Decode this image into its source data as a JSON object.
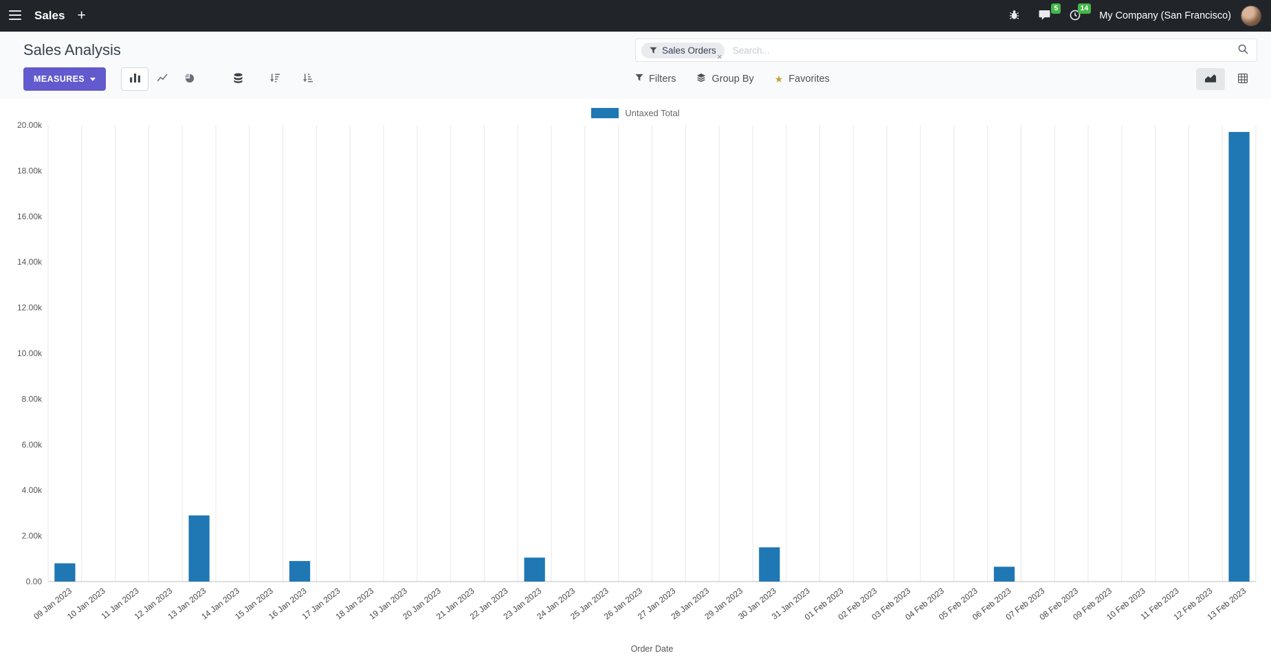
{
  "navbar": {
    "app_name": "Sales",
    "plus_label": "+",
    "company": "My Company (San Francisco)",
    "messages_badge": "5",
    "activities_badge": "14"
  },
  "control_panel": {
    "title": "Sales Analysis",
    "search": {
      "facet_label": "Sales Orders",
      "facet_remove": "×",
      "placeholder": "Search..."
    },
    "buttons": {
      "measures": "MEASURES",
      "filters": "Filters",
      "group_by": "Group By",
      "favorites": "Favorites"
    }
  },
  "icons": {
    "favorites_star": "★"
  },
  "colors": {
    "primary": "#625acd",
    "bar": "#1f77b4",
    "badge_green": "#44b749",
    "navbar_bg": "#212529"
  },
  "chart_data": {
    "type": "bar",
    "title": "",
    "xlabel": "Order Date",
    "ylabel": "",
    "ylim": [
      0,
      20000
    ],
    "ytick_step": 2000,
    "grid": "vertical",
    "legend_position": "top",
    "bar_color": "#1f77b4",
    "categories": [
      "09 Jan 2023",
      "10 Jan 2023",
      "11 Jan 2023",
      "12 Jan 2023",
      "13 Jan 2023",
      "14 Jan 2023",
      "15 Jan 2023",
      "16 Jan 2023",
      "17 Jan 2023",
      "18 Jan 2023",
      "19 Jan 2023",
      "20 Jan 2023",
      "21 Jan 2023",
      "22 Jan 2023",
      "23 Jan 2023",
      "24 Jan 2023",
      "25 Jan 2023",
      "26 Jan 2023",
      "27 Jan 2023",
      "28 Jan 2023",
      "29 Jan 2023",
      "30 Jan 2023",
      "31 Jan 2023",
      "01 Feb 2023",
      "02 Feb 2023",
      "03 Feb 2023",
      "04 Feb 2023",
      "05 Feb 2023",
      "06 Feb 2023",
      "07 Feb 2023",
      "08 Feb 2023",
      "09 Feb 2023",
      "10 Feb 2023",
      "11 Feb 2023",
      "12 Feb 2023",
      "13 Feb 2023"
    ],
    "series": [
      {
        "name": "Untaxed Total",
        "values": [
          800,
          0,
          0,
          0,
          2900,
          0,
          0,
          900,
          0,
          0,
          0,
          0,
          0,
          0,
          1050,
          0,
          0,
          0,
          0,
          0,
          0,
          1500,
          0,
          0,
          0,
          0,
          0,
          0,
          650,
          0,
          0,
          0,
          0,
          0,
          0,
          19700
        ]
      }
    ]
  }
}
